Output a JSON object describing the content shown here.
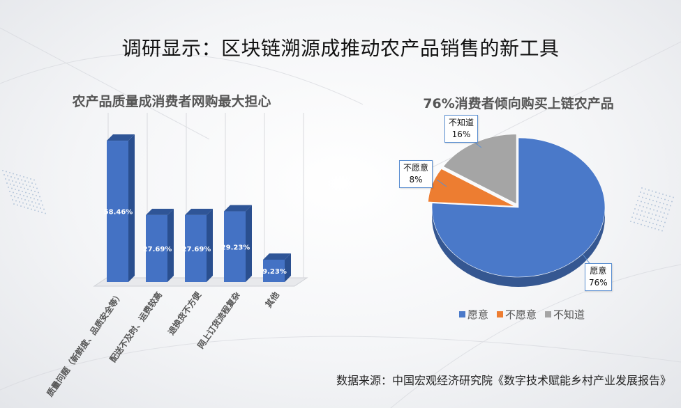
{
  "title": "调研显示：区块链溯源成推动农产品销售的新工具",
  "source": "数据来源：中国宏观经济研究院《数字技术赋能乡村产业发展报告》",
  "colors": {
    "bar": "#4472c4",
    "bar_top": "#2f5597",
    "bar_side": "#2a4f8f",
    "pie_1": "#4a79c9",
    "pie_2": "#ed7d31",
    "pie_3": "#a5a5a5"
  },
  "chart_data": [
    {
      "type": "bar",
      "title": "农产品质量成消费者网购最大担心",
      "categories": [
        "质量问题（新鲜度、品质安全等）",
        "配送不及时、运费较高",
        "退换货不方便",
        "网上订货流程复杂",
        "其他"
      ],
      "values": [
        58.46,
        27.69,
        27.69,
        29.23,
        9.23
      ],
      "data_labels": [
        "58.46%",
        "27.69%",
        "27.69%",
        "29.23%",
        "9.23%"
      ],
      "ylim": [
        0,
        70
      ],
      "grid": true
    },
    {
      "type": "pie",
      "title": "76%消费者倾向购买上链农产品",
      "labels": [
        "愿意",
        "不愿意",
        "不知道"
      ],
      "values": [
        76,
        8,
        16
      ],
      "data_labels": [
        "76%",
        "8%",
        "16%"
      ],
      "legend": "bottom"
    }
  ]
}
